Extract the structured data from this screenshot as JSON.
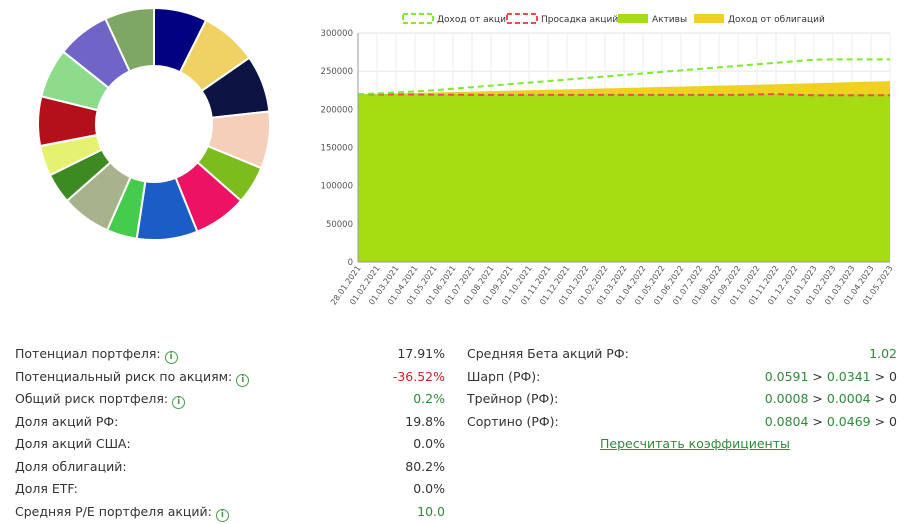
{
  "colors": {
    "pie": [
      "#000080",
      "#f0d264",
      "#0c1444",
      "#f5cfba",
      "#7cbc1c",
      "#ee1265",
      "#1b5cc6",
      "#46cc4c",
      "#a6b38d",
      "#3e8a22",
      "#e4f270",
      "#b4101c",
      "#8cdc8c",
      "#6e65c6",
      "#7ea664"
    ],
    "shares": "#a6dc12",
    "bonds": "#f0d021",
    "stock_income": "#7fea2e",
    "drawdown": "#ee4c50",
    "green_text": "#2e8b3a",
    "red_text": "#d32020"
  },
  "chart_data": [
    {
      "type": "pie",
      "title": "",
      "donut": true,
      "values": [
        7.0,
        7.5,
        7.5,
        7.5,
        5.0,
        7.0,
        8.0,
        4.0,
        6.5,
        4.0,
        4.0,
        6.5,
        6.5,
        7.0,
        6.5
      ],
      "note": "portfolio allocation donut, no labels shown; slices listed clockwise from top"
    },
    {
      "type": "area",
      "title": "",
      "xlabel": "",
      "ylabel": "",
      "categories": [
        "28.01.2021",
        "01.02.2021",
        "01.03.2021",
        "01.04.2021",
        "01.05.2021",
        "01.06.2021",
        "01.07.2021",
        "01.08.2021",
        "01.09.2021",
        "01.10.2021",
        "01.11.2021",
        "01.12.2021",
        "01.01.2022",
        "01.02.2022",
        "01.03.2022",
        "01.04.2022",
        "01.05.2022",
        "01.06.2022",
        "01.07.2022",
        "01.08.2022",
        "01.09.2022",
        "01.10.2022",
        "01.11.2022",
        "01.12.2022",
        "01.01.2023",
        "01.02.2023",
        "01.03.2023",
        "01.04.2023",
        "01.05.2023"
      ],
      "ylim": [
        0,
        300000
      ],
      "yticks": [
        0,
        50000,
        100000,
        150000,
        200000,
        250000,
        300000
      ],
      "legend": [
        {
          "name": "Доход от акций",
          "style": "dashed-line",
          "color": "#7fea2e"
        },
        {
          "name": "Просадка акций",
          "style": "dashed-line",
          "color": "#ee4c50"
        },
        {
          "name": "Активы",
          "style": "fill",
          "color": "#a6dc12"
        },
        {
          "name": "Доход от облигаций",
          "style": "fill",
          "color": "#f0d021"
        }
      ],
      "series": [
        {
          "name": "Активы",
          "values": [
            220000,
            220000,
            220000,
            220000,
            220000,
            220000,
            220000,
            220000,
            220000,
            220000,
            220000,
            220000,
            220000,
            220000,
            220000,
            220000,
            220000,
            220000,
            220000,
            220000,
            220000,
            220000,
            220000,
            220000,
            220000,
            220000,
            220000,
            220000,
            220000
          ]
        },
        {
          "name": "Доход от облигаций",
          "values": [
            220000,
            220500,
            221000,
            221500,
            222000,
            222600,
            223200,
            223800,
            224400,
            225000,
            225600,
            226200,
            226800,
            227400,
            228000,
            228600,
            229200,
            229800,
            230400,
            231000,
            231600,
            232200,
            232800,
            233500,
            234200,
            234900,
            235600,
            236300,
            237000
          ]
        },
        {
          "name": "Доход от акций",
          "values": [
            220000,
            220800,
            222000,
            223500,
            225000,
            227000,
            229000,
            231000,
            233000,
            235000,
            237000,
            239000,
            241000,
            243000,
            245000,
            247000,
            249000,
            251000,
            253000,
            255000,
            257000,
            259000,
            261000,
            263000,
            265000,
            265500,
            265500,
            265500,
            265500
          ]
        },
        {
          "name": "Просадка акций",
          "values": [
            220000,
            219500,
            219500,
            219300,
            219200,
            219100,
            219000,
            219000,
            219000,
            219000,
            219000,
            219000,
            219000,
            219000,
            219000,
            219000,
            219000,
            219000,
            219000,
            219000,
            219000,
            219500,
            220000,
            219000,
            218500,
            218500,
            218500,
            218500,
            218500
          ]
        }
      ]
    }
  ],
  "stats_left": [
    {
      "label": "Потенциал портфеля:",
      "value": "17.91%",
      "info": true,
      "tone": "dark"
    },
    {
      "label": "Потенциальный риск по акциям:",
      "value": "-36.52%",
      "info": true,
      "tone": "red"
    },
    {
      "label": "Общий риск портфеля:",
      "value": "0.2%",
      "info": true,
      "tone": "green"
    },
    {
      "label": "Доля акций РФ:",
      "value": "19.8%",
      "info": false,
      "tone": "dark"
    },
    {
      "label": "Доля акций США:",
      "value": "0.0%",
      "info": false,
      "tone": "dark"
    },
    {
      "label": "Доля облигаций:",
      "value": "80.2%",
      "info": false,
      "tone": "dark"
    },
    {
      "label": "Доля ETF:",
      "value": "0.0%",
      "info": false,
      "tone": "dark"
    },
    {
      "label": "Средняя P/E портфеля акций:",
      "value": "10.0",
      "info": true,
      "tone": "green"
    }
  ],
  "stats_right": [
    {
      "label": "Средняя Бета акций РФ:",
      "v1": "1.02",
      "op1": "",
      "v2": "",
      "op2": "",
      "v3": ""
    },
    {
      "label": "Шарп (РФ):",
      "v1": "0.0591",
      "op1": " > ",
      "v2": "0.0341",
      "op2": " > ",
      "v3": "0"
    },
    {
      "label": "Трейнор (РФ):",
      "v1": "0.0008",
      "op1": " > ",
      "v2": "0.0004",
      "op2": " > ",
      "v3": "0"
    },
    {
      "label": "Сортино (РФ):",
      "v1": "0.0804",
      "op1": " > ",
      "v2": "0.0469",
      "op2": " > ",
      "v3": "0"
    }
  ],
  "recalc_link": "Пересчитать коэффициенты",
  "info_glyph": "i"
}
